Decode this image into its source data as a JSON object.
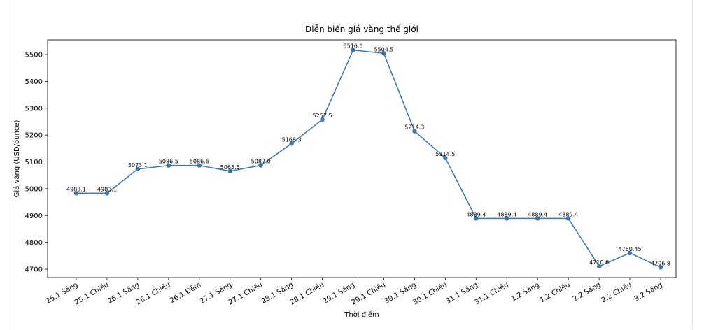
{
  "chart_data": {
    "type": "line",
    "title": "Diễn biến giá vàng thế giới",
    "x_label": "Thời điểm",
    "y_label": "Giá vàng (USD/ounce)",
    "categories": [
      "25.1 Sáng",
      "25.1 Chiều",
      "26.1 Sáng",
      "26.1 Chiều",
      "26.1 Đêm",
      "27.1 Sáng",
      "27.1 Chiều",
      "28.1 Sáng",
      "28.1 Chiều",
      "29.1 Sáng",
      "29.1 Chiều",
      "30.1 Sáng",
      "30.1 Chiều",
      "31.1 Sáng",
      "31.1 Chiều",
      "1.2 Sáng",
      "1.2 Chiều",
      "2.2 Sáng",
      "2.2 Chiều",
      "3.2 Sáng"
    ],
    "values": [
      4983.1,
      4983.1,
      5073.1,
      5086.5,
      5086.6,
      5065.5,
      5087.0,
      5168.3,
      5257.5,
      5516.6,
      5504.5,
      5214.3,
      5114.5,
      4889.4,
      4889.4,
      4889.4,
      4889.4,
      4710.6,
      4760.45,
      4706.8
    ],
    "value_labels": [
      "4983.1",
      "4983.1",
      "5073.1",
      "5086.5",
      "5086.6",
      "5065.5",
      "5087.0",
      "5168.3",
      "5257.5",
      "5516.6",
      "5504.5",
      "5214.3",
      "5114.5",
      "4889.4",
      "4889.4",
      "4889.4",
      "4889.4",
      "4710.6",
      "4760.45",
      "4706.8"
    ],
    "color": "#3b75a9",
    "ylim": [
      4668.8,
      5554.7
    ],
    "yticks": [
      4700,
      4800,
      4900,
      5000,
      5100,
      5200,
      5300,
      5400,
      5500
    ]
  }
}
